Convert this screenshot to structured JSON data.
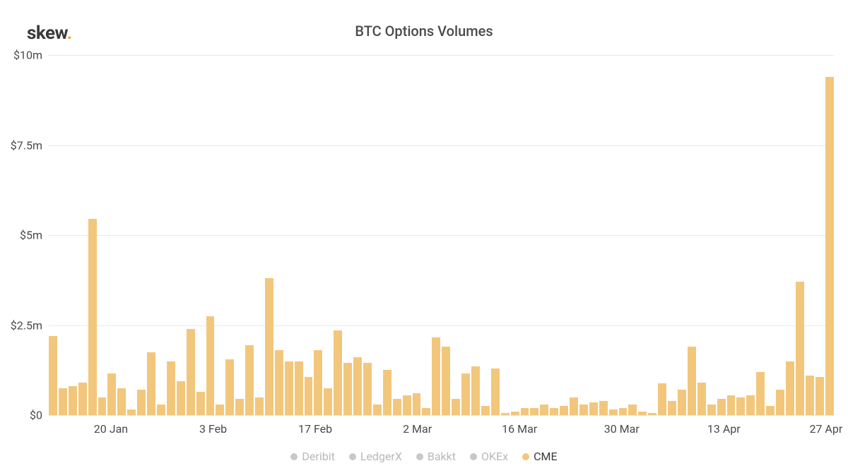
{
  "logo": {
    "text": "skew",
    "dot": "."
  },
  "chart": {
    "type": "bar",
    "title": "BTC Options Volumes",
    "title_fontsize": 20,
    "title_color": "#4a4a4a",
    "background_color": "#ffffff",
    "grid_color": "#e8e8e8",
    "axis_label_color": "#4a4a4a",
    "axis_label_fontsize": 16,
    "ylim": [
      0,
      10
    ],
    "y_unit": "m",
    "y_prefix": "$",
    "y_ticks": [
      {
        "value": 0,
        "label": "$0"
      },
      {
        "value": 2.5,
        "label": "$2.5m"
      },
      {
        "value": 5,
        "label": "$5m"
      },
      {
        "value": 7.5,
        "label": "$7.5m"
      },
      {
        "value": 10,
        "label": "$10m"
      }
    ],
    "x_ticks": [
      {
        "position": 0.08,
        "label": "20 Jan"
      },
      {
        "position": 0.21,
        "label": "3 Feb"
      },
      {
        "position": 0.34,
        "label": "17 Feb"
      },
      {
        "position": 0.47,
        "label": "2 Mar"
      },
      {
        "position": 0.6,
        "label": "16 Mar"
      },
      {
        "position": 0.73,
        "label": "30 Mar"
      },
      {
        "position": 0.86,
        "label": "13 Apr"
      },
      {
        "position": 0.99,
        "label": "27 Apr"
      }
    ],
    "series": {
      "name": "CME",
      "color": "#f2c77c",
      "bar_gap": 2,
      "values": [
        2.2,
        0.75,
        0.8,
        0.9,
        5.45,
        0.5,
        1.15,
        0.75,
        0.15,
        0.7,
        1.75,
        0.3,
        1.5,
        0.95,
        2.4,
        0.65,
        2.75,
        0.3,
        1.55,
        0.45,
        1.95,
        0.5,
        3.8,
        1.8,
        1.5,
        1.5,
        1.05,
        1.8,
        0.75,
        2.35,
        1.45,
        1.6,
        1.45,
        0.3,
        1.25,
        0.45,
        0.55,
        0.6,
        0.2,
        2.15,
        1.9,
        0.45,
        1.15,
        1.35,
        0.25,
        1.3,
        0.05,
        0.1,
        0.2,
        0.2,
        0.3,
        0.2,
        0.25,
        0.5,
        0.3,
        0.35,
        0.4,
        0.15,
        0.2,
        0.3,
        0.1,
        0.05,
        0.88,
        0.4,
        0.7,
        1.9,
        0.9,
        0.3,
        0.45,
        0.55,
        0.5,
        0.55,
        1.2,
        0.25,
        0.7,
        1.5,
        3.7,
        1.1,
        1.05,
        9.4
      ]
    },
    "legend": {
      "items": [
        {
          "label": "Deribit",
          "color": "#c8c8c8",
          "active": false
        },
        {
          "label": "LedgerX",
          "color": "#c8c8c8",
          "active": false
        },
        {
          "label": "Bakkt",
          "color": "#c8c8c8",
          "active": false
        },
        {
          "label": "OKEx",
          "color": "#c8c8c8",
          "active": false
        },
        {
          "label": "CME",
          "color": "#f2c77c",
          "active": true
        }
      ],
      "inactive_text_color": "#b8b8b8",
      "active_text_color": "#3a3a3a"
    }
  }
}
